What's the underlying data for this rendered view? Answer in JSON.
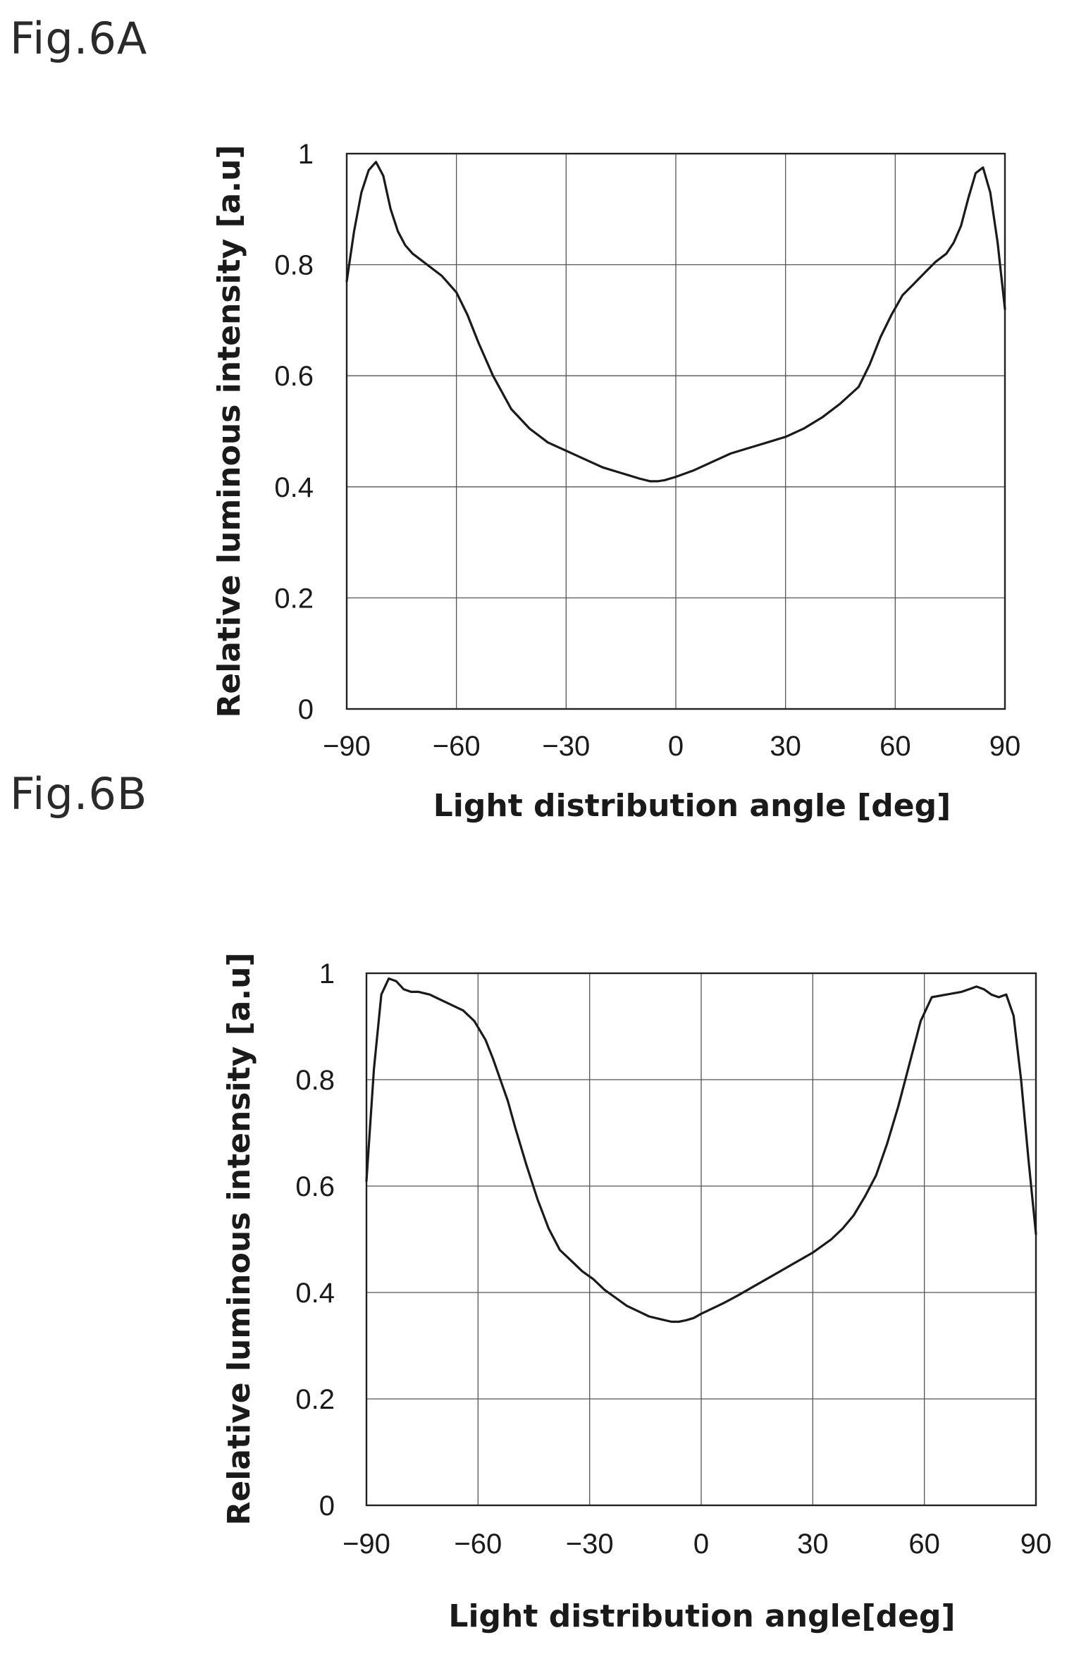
{
  "figures": {
    "fig_a_label": "Fig.6A",
    "fig_b_label": "Fig.6B"
  },
  "chart_data": [
    {
      "type": "line",
      "title": "",
      "xlabel": "Light distribution angle [deg]",
      "ylabel": "Relative luminous intensity [a.u]",
      "xlim": [
        -90,
        90
      ],
      "ylim": [
        0,
        1
      ],
      "xticks": [
        "−90",
        "−60",
        "−30",
        "0",
        "30",
        "60",
        "90"
      ],
      "yticks": [
        "0",
        "0.2",
        "0.4",
        "0.6",
        "0.8",
        "1"
      ],
      "grid": true,
      "x": [
        -90,
        -88,
        -86,
        -84,
        -82,
        -80,
        -78,
        -76,
        -74,
        -72,
        -70,
        -68,
        -66,
        -64,
        -62,
        -60,
        -57,
        -54,
        -50,
        -45,
        -40,
        -35,
        -30,
        -25,
        -20,
        -15,
        -10,
        -7,
        -5,
        -3,
        0,
        5,
        10,
        15,
        20,
        25,
        30,
        35,
        40,
        45,
        50,
        53,
        56,
        59,
        62,
        65,
        68,
        71,
        74,
        76,
        78,
        80,
        82,
        84,
        86,
        88,
        90
      ],
      "y": [
        0.77,
        0.86,
        0.93,
        0.97,
        0.985,
        0.96,
        0.9,
        0.86,
        0.835,
        0.82,
        0.81,
        0.8,
        0.79,
        0.78,
        0.765,
        0.75,
        0.71,
        0.66,
        0.6,
        0.54,
        0.505,
        0.48,
        0.465,
        0.45,
        0.435,
        0.425,
        0.415,
        0.41,
        0.41,
        0.412,
        0.418,
        0.43,
        0.445,
        0.46,
        0.47,
        0.48,
        0.49,
        0.505,
        0.525,
        0.55,
        0.58,
        0.62,
        0.67,
        0.71,
        0.745,
        0.765,
        0.785,
        0.805,
        0.82,
        0.84,
        0.87,
        0.92,
        0.965,
        0.975,
        0.93,
        0.84,
        0.72
      ]
    },
    {
      "type": "line",
      "title": "",
      "xlabel": "Light distribution angle[deg]",
      "ylabel": "Relative luminous intensity [a.u]",
      "xlim": [
        -90,
        90
      ],
      "ylim": [
        0,
        1
      ],
      "xticks": [
        "−90",
        "−60",
        "−30",
        "0",
        "30",
        "60",
        "90"
      ],
      "yticks": [
        "0",
        "0.2",
        "0.4",
        "0.6",
        "0.8",
        "1"
      ],
      "grid": true,
      "x": [
        -90,
        -88,
        -86,
        -84,
        -82,
        -80,
        -78,
        -76,
        -73,
        -70,
        -67,
        -64,
        -61,
        -58,
        -56,
        -54,
        -52,
        -50,
        -47,
        -44,
        -41,
        -38,
        -35,
        -32,
        -29,
        -26,
        -23,
        -20,
        -17,
        -14,
        -11,
        -8,
        -6,
        -4,
        -2,
        0,
        3,
        6,
        10,
        15,
        20,
        25,
        30,
        35,
        38,
        41,
        44,
        47,
        50,
        53,
        56,
        59,
        62,
        66,
        70,
        72,
        74,
        76,
        78,
        80,
        82,
        84,
        86,
        88,
        90
      ],
      "y": [
        0.61,
        0.82,
        0.96,
        0.99,
        0.985,
        0.97,
        0.965,
        0.965,
        0.96,
        0.95,
        0.94,
        0.93,
        0.91,
        0.875,
        0.84,
        0.8,
        0.76,
        0.71,
        0.64,
        0.575,
        0.52,
        0.48,
        0.46,
        0.44,
        0.425,
        0.405,
        0.39,
        0.375,
        0.365,
        0.355,
        0.35,
        0.345,
        0.345,
        0.348,
        0.352,
        0.36,
        0.37,
        0.38,
        0.395,
        0.415,
        0.435,
        0.455,
        0.475,
        0.5,
        0.52,
        0.545,
        0.58,
        0.62,
        0.68,
        0.75,
        0.83,
        0.91,
        0.955,
        0.96,
        0.965,
        0.97,
        0.975,
        0.97,
        0.96,
        0.955,
        0.96,
        0.92,
        0.8,
        0.65,
        0.51
      ]
    }
  ]
}
